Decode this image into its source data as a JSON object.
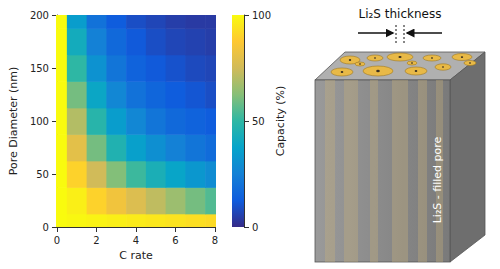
{
  "chart_data": {
    "type": "heatmap",
    "x_label": "C rate",
    "y_label": "Pore Diameter (nm)",
    "x": [
      0,
      1,
      2,
      3,
      4,
      5,
      6,
      7,
      8
    ],
    "y": [
      0,
      25,
      50,
      75,
      100,
      125,
      150,
      175,
      200
    ],
    "values": [
      [
        100,
        99,
        98,
        97,
        96,
        95,
        94,
        93,
        92
      ],
      [
        100,
        97,
        90,
        84,
        78,
        72,
        66,
        60,
        55
      ],
      [
        100,
        90,
        75,
        62,
        52,
        44,
        38,
        33,
        29
      ],
      [
        100,
        80,
        60,
        46,
        36,
        30,
        25,
        21,
        18
      ],
      [
        100,
        70,
        48,
        35,
        27,
        21,
        17,
        15,
        13
      ],
      [
        100,
        60,
        39,
        27,
        20,
        16,
        13,
        11,
        9
      ],
      [
        100,
        50,
        31,
        21,
        15,
        12,
        10,
        8,
        7
      ],
      [
        100,
        42,
        25,
        17,
        12,
        9,
        7,
        6,
        5
      ],
      [
        100,
        35,
        20,
        13,
        9,
        7,
        5,
        4,
        4
      ]
    ],
    "xlim": [
      0,
      8
    ],
    "xticks": [
      0,
      2,
      4,
      6,
      8
    ],
    "ylim": [
      0,
      200
    ],
    "yticks": [
      0,
      50,
      100,
      150,
      200
    ],
    "colorbar": {
      "label": "Capacity (%)",
      "range": [
        0,
        100
      ],
      "ticks": [
        0,
        50,
        100
      ]
    }
  },
  "diagram": {
    "top_label": "Li₂S thickness",
    "side_label": "Li₂S - filled pore"
  }
}
